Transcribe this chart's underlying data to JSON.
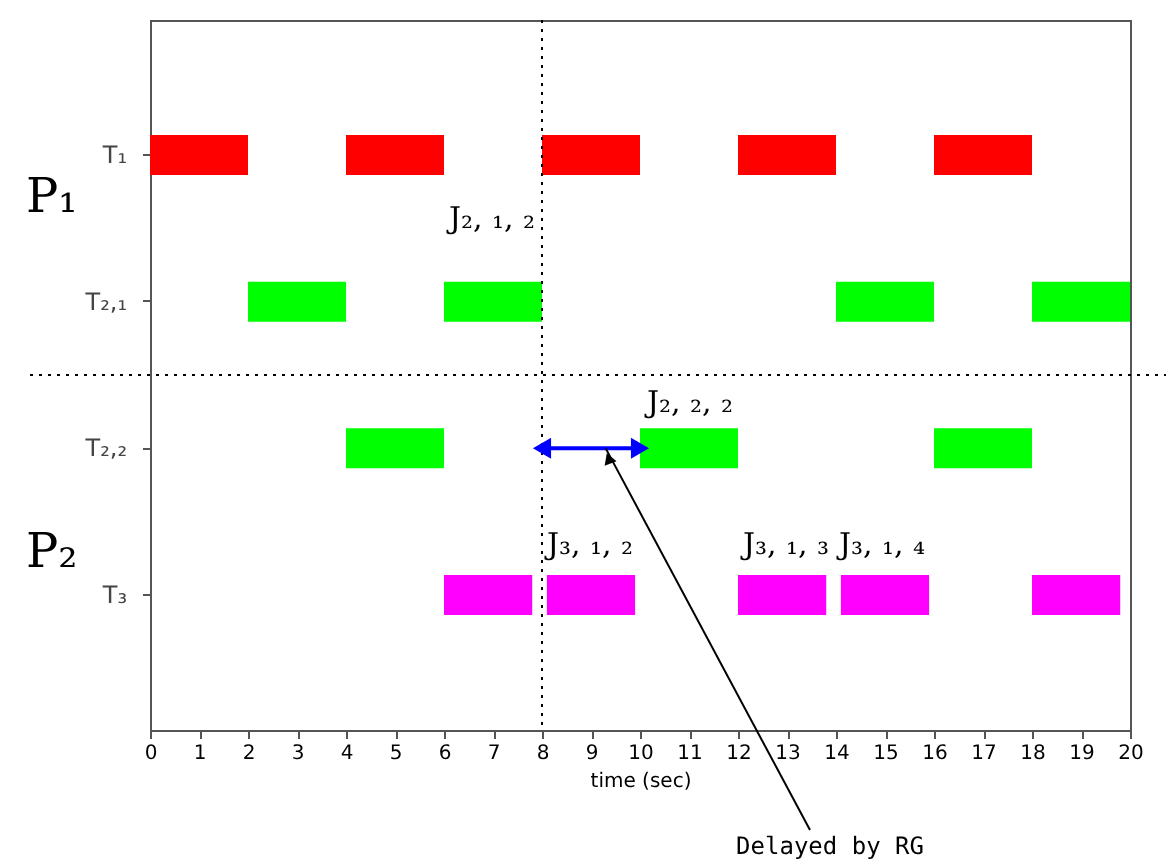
{
  "chart_data": {
    "type": "bar",
    "orientation": "horizontal",
    "xlabel": "time (sec)",
    "categories": [
      "T₁",
      "T₂,₁",
      "T₂,₂",
      "T₃"
    ],
    "series": [
      {
        "colors": [
          "#ff0000",
          "#00ff00",
          "#00ff00",
          "#ff00ff"
        ],
        "base": [
          0,
          2,
          4,
          6
        ],
        "values": [
          2,
          2,
          2,
          1.8
        ]
      },
      {
        "colors": [
          "#ff0000",
          "#00ff00",
          "#00ff00",
          "#ff00ff"
        ],
        "base": [
          4,
          6,
          10,
          8.1
        ],
        "values": [
          2,
          2,
          2,
          1.8
        ]
      },
      {
        "colors": [
          "#ff0000",
          "#00ff00",
          "#00ff00",
          "#ff00ff"
        ],
        "base": [
          8,
          14,
          16,
          12
        ],
        "values": [
          2,
          2,
          2,
          1.8
        ]
      },
      {
        "colors": [
          "#ff0000",
          "#00ff00",
          null,
          "#ff00ff"
        ],
        "base": [
          12,
          18,
          null,
          14.1
        ],
        "values": [
          2,
          2,
          null,
          1.8
        ]
      },
      {
        "colors": [
          "#ff0000",
          null,
          null,
          "#ff00ff"
        ],
        "base": [
          16,
          null,
          null,
          18
        ],
        "values": [
          2,
          null,
          null,
          1.8
        ]
      }
    ],
    "xlim": [
      0,
      20
    ],
    "xticks": [
      0,
      1,
      2,
      3,
      4,
      5,
      6,
      7,
      8,
      9,
      10,
      11,
      12,
      13,
      14,
      15,
      16,
      17,
      18,
      19,
      20
    ],
    "ref_lines": [
      {
        "axis": "x",
        "value": 8,
        "line_style": "dotted"
      }
    ],
    "annotations": [
      "P₁",
      "P₂",
      "J₂, ₁, ₂",
      "J₂, ₂, ₂",
      "J₃, ₁, ₂",
      "J₃, ₁, ₃",
      "J₃, ₁, ₄",
      "Delayed by RG"
    ],
    "grid": false
  }
}
